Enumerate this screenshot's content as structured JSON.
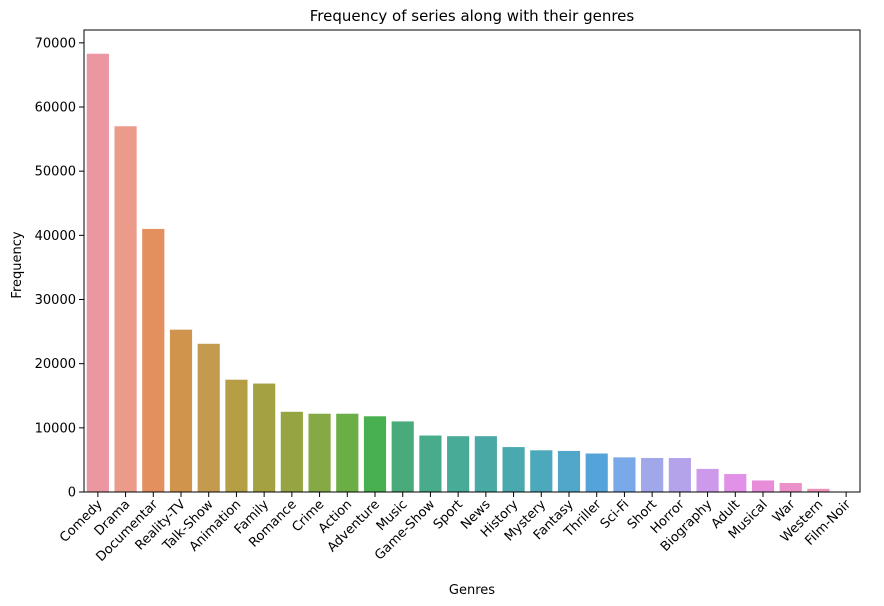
{
  "chart_data": {
    "type": "bar",
    "title": "Frequency of series along with their genres",
    "xlabel": "Genres",
    "ylabel": "Frequency",
    "ylim": [
      0,
      72000
    ],
    "yticks": [
      0,
      10000,
      20000,
      30000,
      40000,
      50000,
      60000,
      70000
    ],
    "grid": false,
    "categories": [
      "Comedy\u000b",
      "Drama\u000b",
      "Documentar",
      "Reality-TV",
      "Talk-Show\u000b",
      "Animation\u000b",
      "Family\u000b",
      "Romance\u000b",
      "Crime\u000b",
      "Action\u000b",
      "Adventure\u000b",
      "Music\u000b",
      "Game-Show\u000b",
      "Sport\u000b",
      "News\u000b",
      "History\u000b",
      "Mystery\u000b",
      "Fantasy\u000b",
      "Thriller\u000b",
      "Sci-Fi\u000b",
      "Short\u000b",
      "Horror\u000b",
      "Biography\u000b",
      "Adult\u000b",
      "Musical\u000b",
      "War\u000b",
      "Western\u000b",
      "Film-Noir\u000b"
    ],
    "values": [
      68300,
      57000,
      41000,
      25300,
      23100,
      17500,
      16900,
      12500,
      12200,
      12200,
      11800,
      11000,
      8800,
      8700,
      8700,
      7000,
      6500,
      6400,
      6000,
      5400,
      5300,
      5300,
      3600,
      2800,
      1800,
      1400,
      500,
      50
    ],
    "colors": [
      "#ea97a1",
      "#ec9a8a",
      "#e38f5e",
      "#d1944c",
      "#c49a4f",
      "#b59e44",
      "#a4a143",
      "#96a542",
      "#85a944",
      "#6bae45",
      "#48b051",
      "#4aab7a",
      "#47ab8c",
      "#48ab98",
      "#49a9a4",
      "#4aa8af",
      "#4ca8bb",
      "#50a7c8",
      "#54a4d9",
      "#79a9e8",
      "#a0a8ea",
      "#b4a2eb",
      "#cd9aeb",
      "#e192e8",
      "#e88ed9",
      "#eb91c9",
      "#ec93bb",
      "#ec95b0"
    ]
  }
}
